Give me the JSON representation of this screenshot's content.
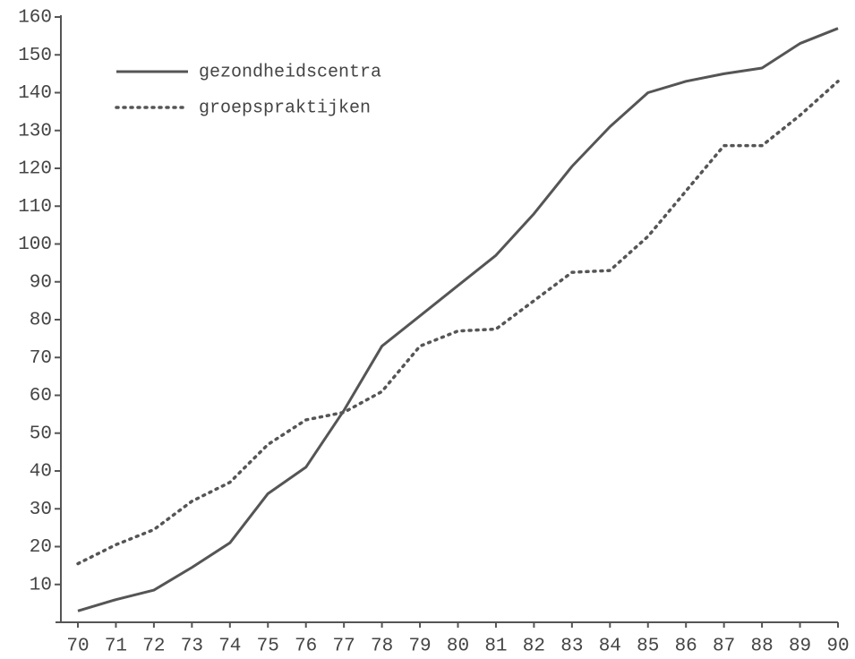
{
  "chart_data": {
    "type": "line",
    "categories": [
      "70",
      "71",
      "72",
      "73",
      "74",
      "75",
      "76",
      "77",
      "78",
      "79",
      "80",
      "81",
      "82",
      "83",
      "84",
      "85",
      "86",
      "87",
      "88",
      "89",
      "90"
    ],
    "series": [
      {
        "name": "gezondheidscentra",
        "color": "#555555",
        "style": "solid",
        "values": [
          3,
          6,
          8.5,
          14.5,
          21,
          34,
          41,
          56,
          73,
          81,
          89,
          97,
          108,
          120.5,
          131,
          140,
          143,
          145,
          146.5,
          153,
          157
        ]
      },
      {
        "name": "groepspraktijken",
        "color": "#555555",
        "style": "dotted",
        "values": [
          15.5,
          20.5,
          24.5,
          32,
          37,
          47,
          53.5,
          55.5,
          61,
          73,
          77,
          77.5,
          85,
          92.5,
          93,
          102,
          114,
          126,
          126,
          134,
          143
        ]
      }
    ],
    "ylim": [
      0,
      160
    ],
    "yticks": [
      10,
      20,
      30,
      40,
      50,
      60,
      70,
      80,
      90,
      100,
      110,
      120,
      130,
      140,
      150,
      160
    ],
    "legend": "upper left"
  }
}
